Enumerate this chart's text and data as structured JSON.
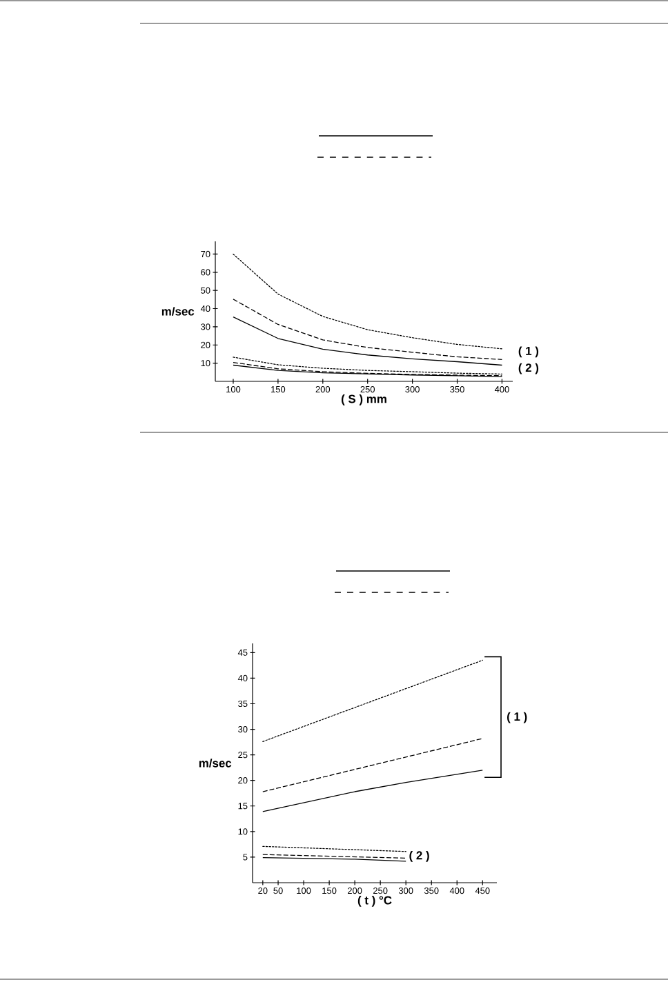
{
  "chart_data": [
    {
      "type": "line",
      "xlabel": "( S ) mm",
      "ylabel": "m/sec",
      "xlim": [
        80,
        412
      ],
      "ylim": [
        0,
        77
      ],
      "xticks": [
        100,
        150,
        200,
        250,
        300,
        350,
        400
      ],
      "yticks": [
        10,
        20,
        30,
        40,
        50,
        60,
        70
      ],
      "x": [
        100,
        150,
        200,
        250,
        300,
        350,
        400
      ],
      "series": [
        {
          "color": "#000000",
          "line_style": "dotted",
          "values": [
            70,
            48,
            35.7,
            28.4,
            24,
            20.3,
            17.9
          ]
        },
        {
          "color": "#000000",
          "line_style": "dashed",
          "values": [
            45.2,
            31.3,
            22.8,
            18.6,
            16,
            13.5,
            12
          ]
        },
        {
          "color": "#000000",
          "line_style": "solid",
          "values": [
            35.4,
            23.6,
            17.7,
            14.5,
            12.4,
            10.8,
            8.9
          ]
        },
        {
          "color": "#000000",
          "line_style": "dotted",
          "values": [
            13.3,
            9.1,
            7.2,
            6,
            5.3,
            4.5,
            4
          ]
        },
        {
          "color": "#000000",
          "line_style": "dashed",
          "values": [
            10.4,
            6.9,
            5.3,
            4.4,
            3.8,
            3.4,
            3.1
          ]
        },
        {
          "color": "#000000",
          "line_style": "solid",
          "values": [
            8.9,
            6,
            4.7,
            4.1,
            3.5,
            3.1,
            2.6
          ]
        }
      ],
      "annotations": [
        "( 1 )",
        "( 2 )"
      ]
    },
    {
      "type": "line",
      "xlabel": "( t ) °C",
      "ylabel": "m/sec",
      "xlim": [
        0,
        478
      ],
      "ylim": [
        0,
        46.8
      ],
      "xticks": [
        20,
        50,
        100,
        150,
        200,
        250,
        300,
        350,
        400,
        450
      ],
      "yticks": [
        5,
        10,
        15,
        20,
        25,
        30,
        35,
        40,
        45
      ],
      "series": [
        {
          "color": "#000000",
          "line_style": "dotted",
          "x": [
            20,
            450
          ],
          "values": [
            27.6,
            43.5
          ]
        },
        {
          "color": "#000000",
          "line_style": "dashed",
          "x": [
            20,
            450
          ],
          "values": [
            17.8,
            28.2
          ]
        },
        {
          "color": "#000000",
          "line_style": "solid",
          "x": [
            20,
            200,
            300,
            450
          ],
          "values": [
            13.9,
            17.8,
            19.6,
            22
          ]
        },
        {
          "color": "#000000",
          "line_style": "dotted",
          "x": [
            20,
            300
          ],
          "values": [
            7.1,
            6.1
          ]
        },
        {
          "color": "#000000",
          "line_style": "dashed",
          "x": [
            20,
            300
          ],
          "values": [
            5.5,
            4.8
          ]
        },
        {
          "color": "#000000",
          "line_style": "solid",
          "x": [
            20,
            200,
            300
          ],
          "values": [
            4.9,
            4.6,
            4.2
          ]
        }
      ],
      "annotations": [
        "( 1 )",
        "( 2 )"
      ]
    }
  ]
}
